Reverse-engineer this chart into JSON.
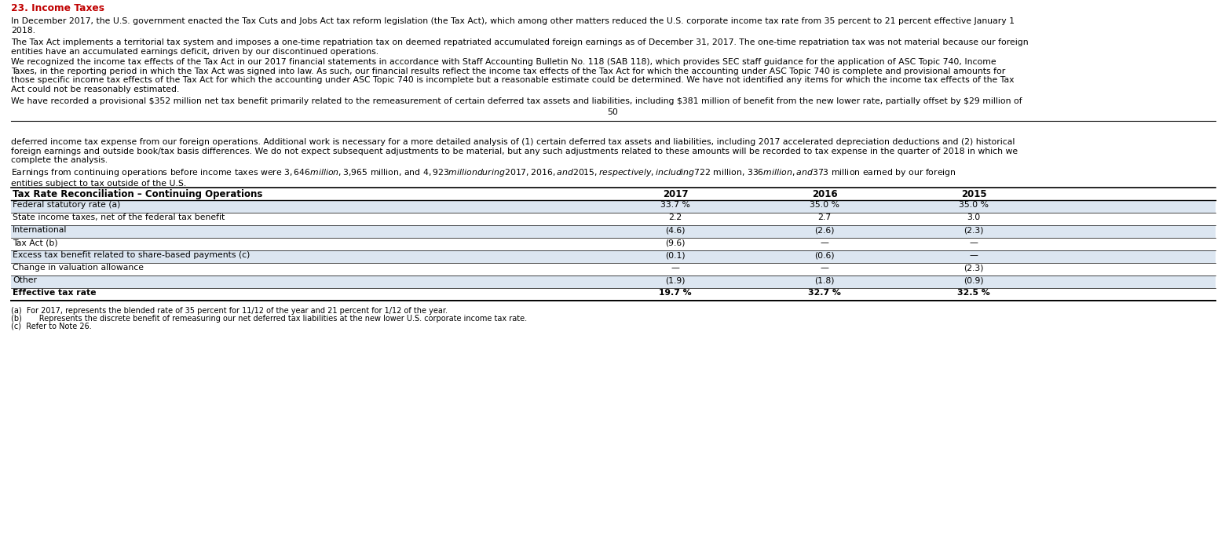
{
  "title": "23. Income Taxes",
  "title_color": "#C00000",
  "para1": "In December 2017, the U.S. government enacted the Tax Cuts and Jobs Act tax reform legislation (the Tax Act), which among other matters reduced the U.S. corporate income tax rate from 35 percent to 21 percent effective January 1\n2018.",
  "para2": "The Tax Act implements a territorial tax system and imposes a one-time repatriation tax on deemed repatriated accumulated foreign earnings as of December 31, 2017. The one-time repatriation tax was not material because our foreign\nentities have an accumulated earnings deficit, driven by our discontinued operations.",
  "para3": "We recognized the income tax effects of the Tax Act in our 2017 financial statements in accordance with Staff Accounting Bulletin No. 118 (SAB 118), which provides SEC staff guidance for the application of ASC Topic 740, Income\nTaxes, in the reporting period in which the Tax Act was signed into law. As such, our financial results reflect the income tax effects of the Tax Act for which the accounting under ASC Topic 740 is complete and provisional amounts for\nthose specific income tax effects of the Tax Act for which the accounting under ASC Topic 740 is incomplete but a reasonable estimate could be determined. We have not identified any items for which the income tax effects of the Tax\nAct could not be reasonably estimated.",
  "para4": "We have recorded a provisional $352 million net tax benefit primarily related to the remeasurement of certain deferred tax assets and liabilities, including $381 million of benefit from the new lower rate, partially offset by $29 million of",
  "page_number": "50",
  "para5": "deferred income tax expense from our foreign operations. Additional work is necessary for a more detailed analysis of (1) certain deferred tax assets and liabilities, including 2017 accelerated depreciation deductions and (2) historical\nforeign earnings and outside book/tax basis differences. We do not expect subsequent adjustments to be material, but any such adjustments related to these amounts will be recorded to tax expense in the quarter of 2018 in which we\ncomplete the analysis.",
  "para6": "Earnings from continuing operations before income taxes were $3,646 million, $3,965 million, and $4,923 million during 2017, 2016, and 2015, respectively, including $722 million, $336 million, and $373 million earned by our foreign\nentities subject to tax outside of the U.S.",
  "table_header": "Tax Rate Reconciliation – Continuing Operations",
  "col_headers": [
    "2017",
    "2016",
    "2015"
  ],
  "rows": [
    {
      "label": "Federal statutory rate (a)",
      "vals": [
        "33.7 %",
        "35.0 %",
        "35.0 %"
      ],
      "shaded": true
    },
    {
      "label": "State income taxes, net of the federal tax benefit",
      "vals": [
        "2.2",
        "2.7",
        "3.0"
      ],
      "shaded": false
    },
    {
      "label": "International",
      "vals": [
        "(4.6)",
        "(2.6)",
        "(2.3)"
      ],
      "shaded": true
    },
    {
      "label": "Tax Act (b)",
      "vals": [
        "(9.6)",
        "—",
        "—"
      ],
      "shaded": false
    },
    {
      "label": "Excess tax benefit related to share-based payments (c)",
      "vals": [
        "(0.1)",
        "(0.6)",
        "—"
      ],
      "shaded": true
    },
    {
      "label": "Change in valuation allowance",
      "vals": [
        "—",
        "—",
        "(2.3)"
      ],
      "shaded": false
    },
    {
      "label": "Other",
      "vals": [
        "(1.9)",
        "(1.8)",
        "(0.9)"
      ],
      "shaded": true
    },
    {
      "label": "Effective tax rate",
      "vals": [
        "19.7 %",
        "32.7 %",
        "32.5 %"
      ],
      "shaded": false,
      "last": true
    }
  ],
  "footnotes": [
    "(a)  For 2017, represents the blended rate of 35 percent for 11/12 of the year and 21 percent for 1/12 of the year.",
    "(b)       Represents the discrete benefit of remeasuring our net deferred tax liabilities at the new lower U.S. corporate income tax rate.",
    "(c)  Refer to Note 26."
  ],
  "bg_color": "#ffffff",
  "shaded_row_color": "#dce6f1",
  "text_color": "#000000",
  "font_size_body": 7.8,
  "font_size_title": 8.8,
  "font_size_table_header": 8.5,
  "font_size_footnote": 7.0
}
